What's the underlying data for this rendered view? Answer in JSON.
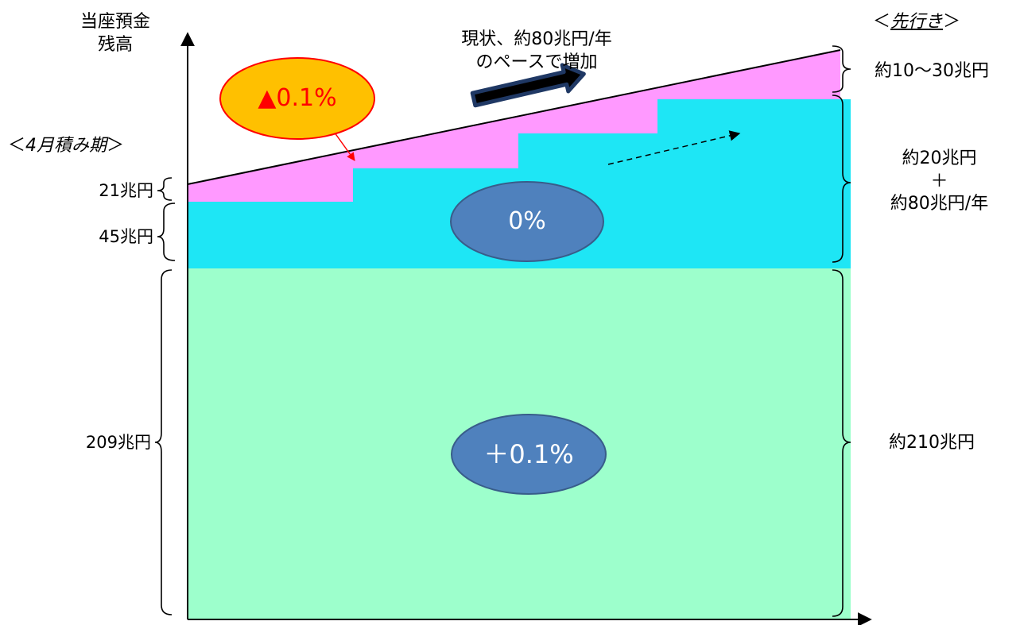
{
  "y_axis_label": [
    "当座預金",
    "残高"
  ],
  "left_header": {
    "prefix": "＜",
    "text": "4月積み期",
    "suffix": "＞"
  },
  "right_header": {
    "prefix": "＜",
    "text": "先行き",
    "suffix": "＞"
  },
  "growth_note": [
    "現状、約80兆円/年",
    "のペースで増加"
  ],
  "tiers": [
    {
      "rate": "▲0.1%",
      "rate_symbol": "▲",
      "rate_value": "0.1%",
      "color": "#ff99ff",
      "left_amount": "21兆円",
      "right_amount": "約10～30兆円"
    },
    {
      "rate": "0%",
      "color": "#1ee6f5",
      "left_amount": "45兆円",
      "right_amount": [
        "約20兆円",
        "＋",
        "約80兆円/年"
      ]
    },
    {
      "rate": "＋0.1%",
      "color": "#9dffcc",
      "left_amount": "209兆円",
      "right_amount": "約210兆円"
    }
  ],
  "colors": {
    "negative_bubble": "#ffc000",
    "negative_bubble_border": "#ff0000",
    "negative_text": "#ff0000",
    "rate_bubble": "#4f81bd",
    "rate_bubble_border": "#385d8a",
    "arrow": "#1f3864"
  }
}
